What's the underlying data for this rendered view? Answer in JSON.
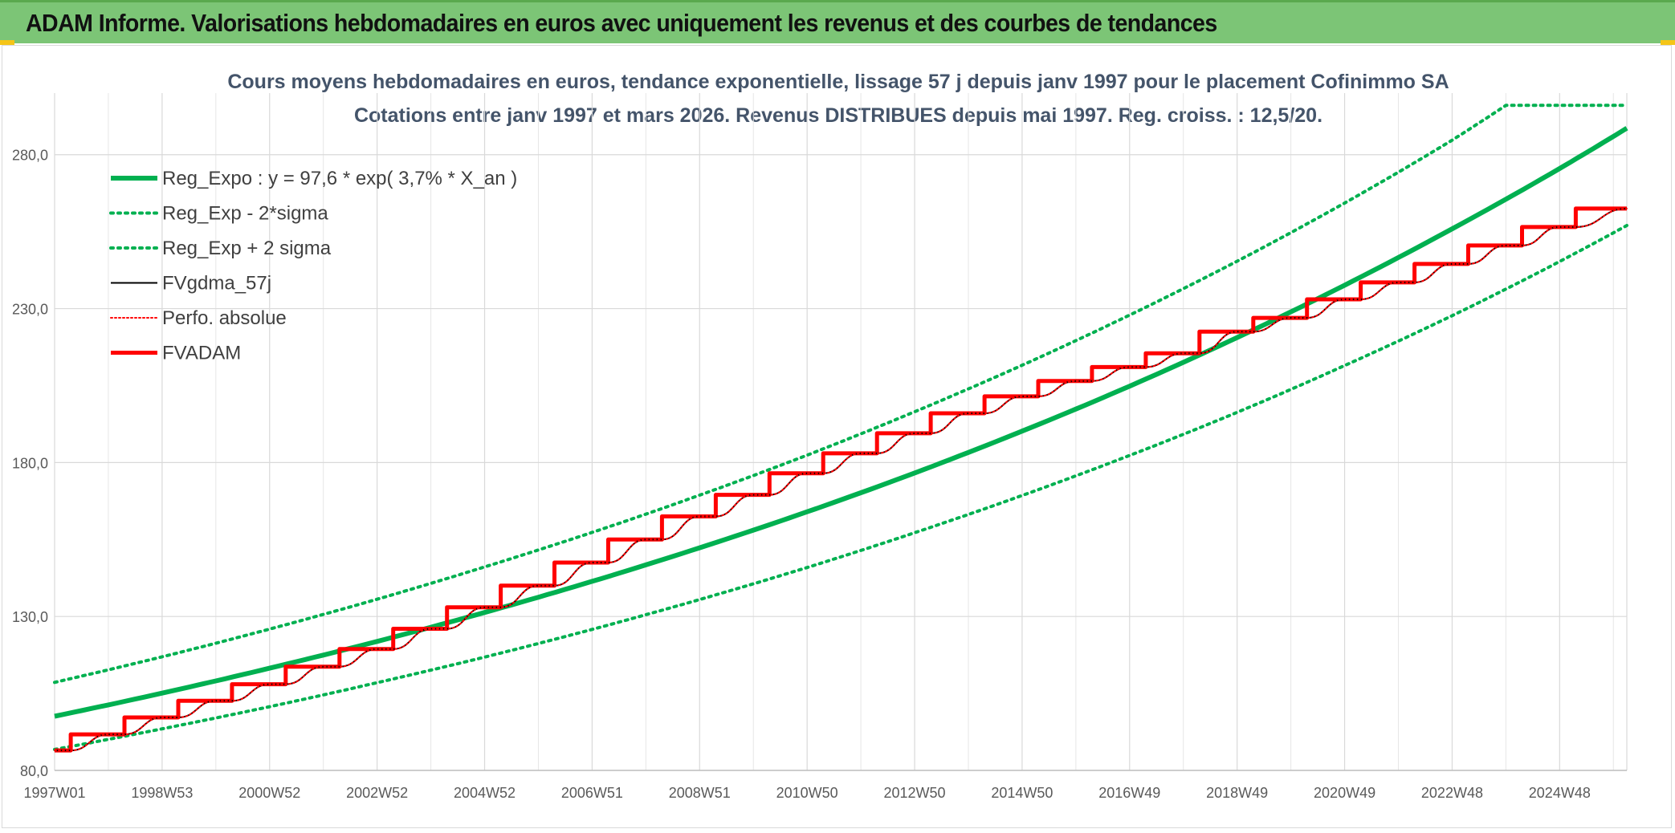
{
  "header": {
    "title": "ADAM Informe. Valorisations hebdomadaires en euros avec uniquement les revenus et des courbes de tendances"
  },
  "colors": {
    "banner": "#7cc576",
    "green": "#00b050",
    "black": "#000000",
    "red": "#ff0000",
    "accent": "#f5c518"
  },
  "chart_data": {
    "type": "line",
    "title": "Cours moyens hebdomadaires en euros, tendance exponentielle, lissage 57 j depuis janv 1997 pour le placement Cofinimmo SA",
    "subtitle": "Cotations entre janv 1997 et mars 2026. Revenus DISTRIBUES depuis mai 1997. Reg. croiss. : 12,5/20.",
    "xlabel": "",
    "ylabel": "",
    "ylim": [
      80,
      300
    ],
    "yticks": [
      80,
      130,
      180,
      230,
      280
    ],
    "ytick_labels": [
      "80,0",
      "130,0",
      "180,0",
      "230,0",
      "280,0"
    ],
    "xlim": [
      1997.0,
      2026.25
    ],
    "xticks": [
      1997.0,
      1999.0,
      2001.0,
      2003.0,
      2005.0,
      2007.0,
      2009.0,
      2011.0,
      2013.0,
      2015.0,
      2017.0,
      2019.0,
      2021.0,
      2023.0,
      2025.0
    ],
    "xtick_labels": [
      "1997W01",
      "1998W53",
      "2000W52",
      "2002W52",
      "2004W52",
      "2006W51",
      "2008W51",
      "2010W50",
      "2012W50",
      "2014W50",
      "2016W49",
      "2018W49",
      "2020W49",
      "2022W48",
      "2024W48"
    ],
    "grid": true,
    "legend_position": "top-left",
    "series": [
      {
        "name": "Reg_Expo : y = 97,6 * exp( 3,7% *  X_an )",
        "style": "solid-thick",
        "color": "#00b050",
        "x": [
          1997.0,
          1999.0,
          2001.0,
          2003.0,
          2005.0,
          2007.0,
          2009.0,
          2011.0,
          2013.0,
          2015.0,
          2017.0,
          2019.0,
          2021.0,
          2023.0,
          2025.0,
          2026.25
        ],
        "values": [
          97.6,
          105.1,
          113.2,
          121.9,
          131.3,
          141.4,
          152.3,
          164.0,
          176.6,
          190.2,
          204.8,
          220.6,
          237.6,
          255.9,
          275.5,
          288.6
        ]
      },
      {
        "name": "Reg_Exp - 2*sigma",
        "style": "dotted",
        "color": "#00b050",
        "x": [
          1997.0,
          1999.0,
          2001.0,
          2003.0,
          2005.0,
          2007.0,
          2009.0,
          2011.0,
          2013.0,
          2015.0,
          2017.0,
          2019.0,
          2021.0,
          2023.0,
          2025.0,
          2026.25
        ],
        "values": [
          86.8,
          93.5,
          100.7,
          108.5,
          116.8,
          125.8,
          135.5,
          145.9,
          157.2,
          169.3,
          182.3,
          196.3,
          211.5,
          227.7,
          245.3,
          257.0
        ]
      },
      {
        "name": "Reg_Exp + 2 sigma",
        "style": "dotted",
        "color": "#00b050",
        "x": [
          1997.0,
          1999.0,
          2001.0,
          2003.0,
          2005.0,
          2007.0,
          2009.0,
          2011.0,
          2013.0,
          2015.0,
          2017.0,
          2019.0,
          2021.0,
          2023.0,
          2024.0,
          2026.25
        ],
        "values": [
          108.6,
          116.9,
          125.9,
          135.6,
          146.1,
          157.3,
          169.4,
          182.4,
          196.5,
          211.6,
          227.9,
          245.4,
          264.3,
          284.7,
          296.0,
          296.0
        ]
      },
      {
        "name": "FVgdma_57j",
        "style": "solid-thin",
        "color": "#000000",
        "x": [
          1997.0,
          1997.3,
          1998.0,
          1998.3,
          1999.0,
          1999.3,
          2000.0,
          2000.3,
          2001.0,
          2001.3,
          2002.0,
          2002.3,
          2003.0,
          2003.3,
          2004.0,
          2004.3,
          2005.0,
          2005.3,
          2006.0,
          2006.3,
          2007.0,
          2007.3,
          2008.0,
          2008.3,
          2009.0,
          2009.3,
          2010.0,
          2010.3,
          2011.0,
          2011.3,
          2012.0,
          2012.3,
          2013.0,
          2013.3,
          2014.0,
          2014.3,
          2015.0,
          2015.3,
          2016.0,
          2016.3,
          2017.0,
          2017.3,
          2018.0,
          2018.3,
          2019.0,
          2019.3,
          2020.0,
          2020.3,
          2021.0,
          2021.3,
          2022.0,
          2022.3,
          2023.0,
          2023.3,
          2024.0,
          2024.3,
          2025.0,
          2025.3,
          2026.25
        ],
        "values": [
          86.5,
          86.5,
          91.7,
          91.7,
          97.2,
          97.2,
          102.6,
          102.6,
          108.0,
          108.0,
          113.7,
          113.7,
          119.4,
          119.4,
          126.0,
          126.0,
          133.0,
          133.0,
          140.0,
          140.0,
          147.5,
          147.5,
          155.0,
          155.0,
          162.5,
          162.5,
          169.5,
          169.5,
          176.5,
          176.5,
          183.0,
          183.0,
          189.5,
          189.5,
          196.0,
          196.0,
          201.5,
          201.5,
          206.5,
          206.5,
          211.0,
          211.0,
          215.5,
          215.5,
          222.5,
          222.5,
          227.0,
          227.0,
          233.0,
          233.0,
          238.5,
          238.5,
          244.5,
          244.5,
          250.5,
          250.5,
          256.5,
          256.5,
          262.5
        ]
      },
      {
        "name": "Perfo. absolue",
        "style": "dotted-thin",
        "color": "#ff0000",
        "x": [
          1997.0,
          1997.3,
          1998.0,
          1998.3,
          1999.0,
          1999.3,
          2000.0,
          2000.3,
          2001.0,
          2001.3,
          2002.0,
          2002.3,
          2003.0,
          2003.3,
          2004.0,
          2004.3,
          2005.0,
          2005.3,
          2006.0,
          2006.3,
          2007.0,
          2007.3,
          2008.0,
          2008.3,
          2009.0,
          2009.3,
          2010.0,
          2010.3,
          2011.0,
          2011.3,
          2012.0,
          2012.3,
          2013.0,
          2013.3,
          2014.0,
          2014.3,
          2015.0,
          2015.3,
          2016.0,
          2016.3,
          2017.0,
          2017.3,
          2018.0,
          2018.3,
          2019.0,
          2019.3,
          2020.0,
          2020.3,
          2021.0,
          2021.3,
          2022.0,
          2022.3,
          2023.0,
          2023.3,
          2024.0,
          2024.3,
          2025.0,
          2025.3,
          2026.25
        ],
        "values": [
          86.5,
          86.5,
          91.7,
          91.7,
          97.2,
          97.2,
          102.6,
          102.6,
          108.0,
          108.0,
          113.7,
          113.7,
          119.4,
          119.4,
          126.0,
          126.0,
          133.0,
          133.0,
          140.0,
          140.0,
          147.5,
          147.5,
          155.0,
          155.0,
          162.5,
          162.5,
          169.5,
          169.5,
          176.5,
          176.5,
          183.0,
          183.0,
          189.5,
          189.5,
          196.0,
          196.0,
          201.5,
          201.5,
          206.5,
          206.5,
          211.0,
          211.0,
          215.5,
          215.5,
          222.5,
          222.5,
          227.0,
          227.0,
          233.0,
          233.0,
          238.5,
          238.5,
          244.5,
          244.5,
          250.5,
          250.5,
          256.5,
          256.5,
          262.5
        ]
      },
      {
        "name": "FVADAM",
        "style": "step-thick",
        "color": "#ff0000",
        "x": [
          1997.0,
          1997.3,
          1997.3,
          1998.3,
          1998.3,
          1999.3,
          1999.3,
          2000.3,
          2000.3,
          2001.3,
          2001.3,
          2002.3,
          2002.3,
          2003.3,
          2003.3,
          2004.3,
          2004.3,
          2005.3,
          2005.3,
          2006.3,
          2006.3,
          2007.3,
          2007.3,
          2008.3,
          2008.3,
          2009.3,
          2009.3,
          2010.3,
          2010.3,
          2011.3,
          2011.3,
          2012.3,
          2012.3,
          2013.3,
          2013.3,
          2014.3,
          2014.3,
          2015.3,
          2015.3,
          2016.3,
          2016.3,
          2017.3,
          2017.3,
          2018.3,
          2018.3,
          2019.3,
          2019.3,
          2020.3,
          2020.3,
          2021.3,
          2021.3,
          2022.3,
          2022.3,
          2023.3,
          2023.3,
          2024.3,
          2024.3,
          2025.3,
          2025.3,
          2026.25
        ],
        "values": [
          86.5,
          86.5,
          91.7,
          91.7,
          97.2,
          97.2,
          102.6,
          102.6,
          108.0,
          108.0,
          113.7,
          113.7,
          119.4,
          119.4,
          126.0,
          126.0,
          133.0,
          133.0,
          140.0,
          140.0,
          147.5,
          147.5,
          155.0,
          155.0,
          162.5,
          162.5,
          169.5,
          169.5,
          176.5,
          176.5,
          183.0,
          183.0,
          189.5,
          189.5,
          196.0,
          196.0,
          201.5,
          201.5,
          206.5,
          206.5,
          211.0,
          211.0,
          215.5,
          215.5,
          222.5,
          222.5,
          227.0,
          227.0,
          233.0,
          233.0,
          238.5,
          238.5,
          244.5,
          244.5,
          250.5,
          250.5,
          256.5,
          256.5,
          262.5,
          262.5
        ]
      }
    ]
  }
}
